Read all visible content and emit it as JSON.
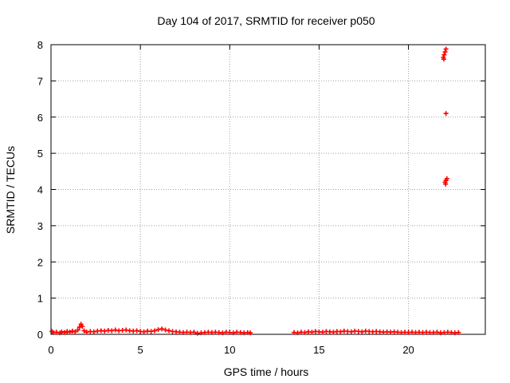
{
  "chart_data": {
    "type": "scatter",
    "title": "Day 104 of 2017, SRMTID for receiver p050",
    "xlabel": "GPS time / hours",
    "ylabel": "SRMTID / TECUs",
    "xlim": [
      0,
      24.3
    ],
    "ylim": [
      0,
      8
    ],
    "xticks": [
      0,
      5,
      10,
      15,
      20
    ],
    "yticks": [
      0,
      1,
      2,
      3,
      4,
      5,
      6,
      7,
      8
    ],
    "grid": true,
    "legend": "none",
    "marker": "plus",
    "color": "#ff0000",
    "series": [
      {
        "points": [
          [
            0.05,
            0.08
          ],
          [
            0.15,
            0.05
          ],
          [
            0.3,
            0.06
          ],
          [
            0.5,
            0.04
          ],
          [
            0.6,
            0.07
          ],
          [
            0.75,
            0.05
          ],
          [
            0.9,
            0.08
          ],
          [
            1.05,
            0.06
          ],
          [
            1.2,
            0.09
          ],
          [
            1.35,
            0.07
          ],
          [
            1.5,
            0.12
          ],
          [
            1.6,
            0.2
          ],
          [
            1.68,
            0.28
          ],
          [
            1.75,
            0.22
          ],
          [
            1.85,
            0.1
          ],
          [
            2.0,
            0.06
          ],
          [
            2.2,
            0.08
          ],
          [
            2.4,
            0.07
          ],
          [
            2.6,
            0.09
          ],
          [
            2.8,
            0.1
          ],
          [
            3.0,
            0.09
          ],
          [
            3.2,
            0.11
          ],
          [
            3.4,
            0.1
          ],
          [
            3.6,
            0.12
          ],
          [
            3.8,
            0.1
          ],
          [
            4.0,
            0.11
          ],
          [
            4.2,
            0.12
          ],
          [
            4.4,
            0.1
          ],
          [
            4.6,
            0.09
          ],
          [
            4.8,
            0.1
          ],
          [
            5.0,
            0.08
          ],
          [
            5.2,
            0.07
          ],
          [
            5.4,
            0.09
          ],
          [
            5.6,
            0.08
          ],
          [
            5.8,
            0.1
          ],
          [
            6.0,
            0.13
          ],
          [
            6.2,
            0.15
          ],
          [
            6.4,
            0.12
          ],
          [
            6.6,
            0.1
          ],
          [
            6.8,
            0.08
          ],
          [
            7.0,
            0.07
          ],
          [
            7.2,
            0.06
          ],
          [
            7.4,
            0.05
          ],
          [
            7.6,
            0.06
          ],
          [
            7.8,
            0.05
          ],
          [
            8.0,
            0.06
          ],
          [
            8.2,
            0.03
          ],
          [
            8.4,
            0.04
          ],
          [
            8.6,
            0.05
          ],
          [
            8.8,
            0.06
          ],
          [
            9.0,
            0.05
          ],
          [
            9.2,
            0.06
          ],
          [
            9.4,
            0.05
          ],
          [
            9.6,
            0.04
          ],
          [
            9.8,
            0.06
          ],
          [
            10.0,
            0.05
          ],
          [
            10.2,
            0.04
          ],
          [
            10.4,
            0.06
          ],
          [
            10.6,
            0.05
          ],
          [
            10.8,
            0.04
          ],
          [
            11.0,
            0.05
          ],
          [
            11.15,
            0.04
          ],
          [
            13.6,
            0.05
          ],
          [
            13.8,
            0.04
          ],
          [
            14.0,
            0.06
          ],
          [
            14.2,
            0.05
          ],
          [
            14.4,
            0.07
          ],
          [
            14.6,
            0.06
          ],
          [
            14.8,
            0.08
          ],
          [
            15.0,
            0.07
          ],
          [
            15.2,
            0.06
          ],
          [
            15.4,
            0.08
          ],
          [
            15.6,
            0.07
          ],
          [
            15.8,
            0.06
          ],
          [
            16.0,
            0.08
          ],
          [
            16.2,
            0.07
          ],
          [
            16.4,
            0.09
          ],
          [
            16.6,
            0.08
          ],
          [
            16.8,
            0.07
          ],
          [
            17.0,
            0.09
          ],
          [
            17.2,
            0.08
          ],
          [
            17.4,
            0.07
          ],
          [
            17.6,
            0.09
          ],
          [
            17.8,
            0.08
          ],
          [
            18.0,
            0.07
          ],
          [
            18.2,
            0.08
          ],
          [
            18.4,
            0.07
          ],
          [
            18.6,
            0.06
          ],
          [
            18.8,
            0.07
          ],
          [
            19.0,
            0.06
          ],
          [
            19.2,
            0.07
          ],
          [
            19.4,
            0.06
          ],
          [
            19.6,
            0.05
          ],
          [
            19.8,
            0.06
          ],
          [
            20.0,
            0.05
          ],
          [
            20.2,
            0.06
          ],
          [
            20.4,
            0.05
          ],
          [
            20.6,
            0.06
          ],
          [
            20.8,
            0.05
          ],
          [
            21.0,
            0.06
          ],
          [
            21.2,
            0.05
          ],
          [
            21.4,
            0.05
          ],
          [
            21.6,
            0.06
          ],
          [
            21.8,
            0.04
          ],
          [
            22.0,
            0.05
          ],
          [
            22.2,
            0.06
          ],
          [
            22.4,
            0.05
          ],
          [
            22.6,
            0.04
          ],
          [
            22.8,
            0.05
          ],
          [
            21.95,
            7.65
          ],
          [
            22.0,
            7.72
          ],
          [
            22.05,
            7.8
          ],
          [
            22.1,
            7.88
          ],
          [
            21.98,
            7.6
          ],
          [
            22.1,
            6.1
          ],
          [
            22.05,
            4.2
          ],
          [
            22.1,
            4.25
          ],
          [
            22.15,
            4.3
          ],
          [
            22.08,
            4.15
          ]
        ]
      }
    ]
  }
}
